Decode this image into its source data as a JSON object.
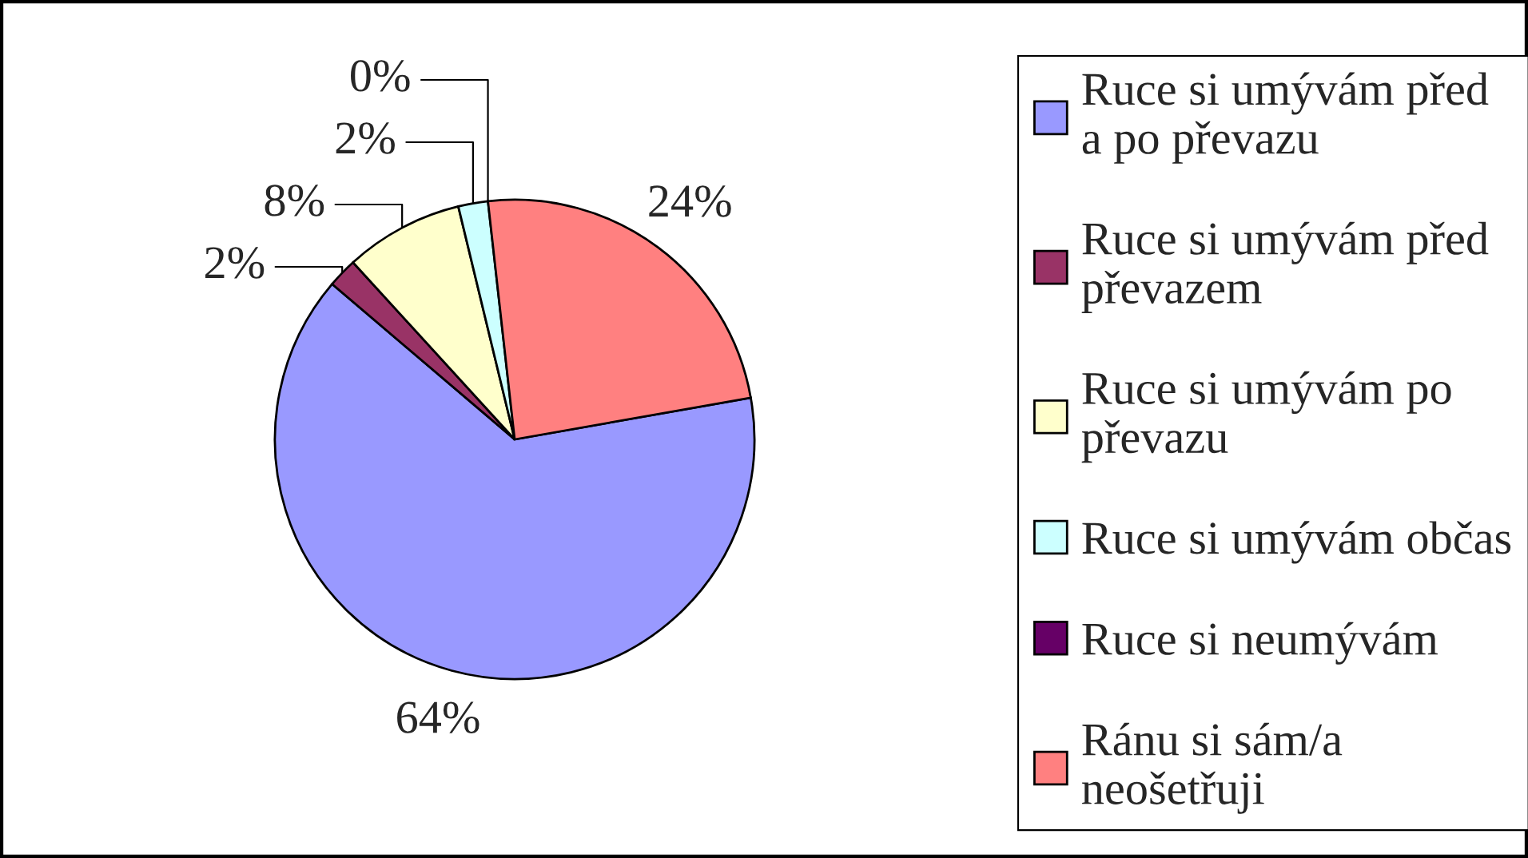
{
  "chart_data": {
    "type": "pie",
    "categories": [
      "Ruce si umývám před a po převazu",
      "Ruce si umývám před převazem",
      "Ruce si umývám po převazu",
      "Ruce si umývám občas",
      "Ruce si neumývám",
      "Ránu si sám/a neošetřuji"
    ],
    "values": [
      64,
      2,
      8,
      2,
      0,
      24
    ],
    "colors": [
      "#9999ff",
      "#993366",
      "#ffffcc",
      "#ccffff",
      "#660066",
      "#ff8080"
    ],
    "value_labels": [
      "64%",
      "2%",
      "8%",
      "2%",
      "0%",
      "24%"
    ],
    "legend": "right"
  }
}
